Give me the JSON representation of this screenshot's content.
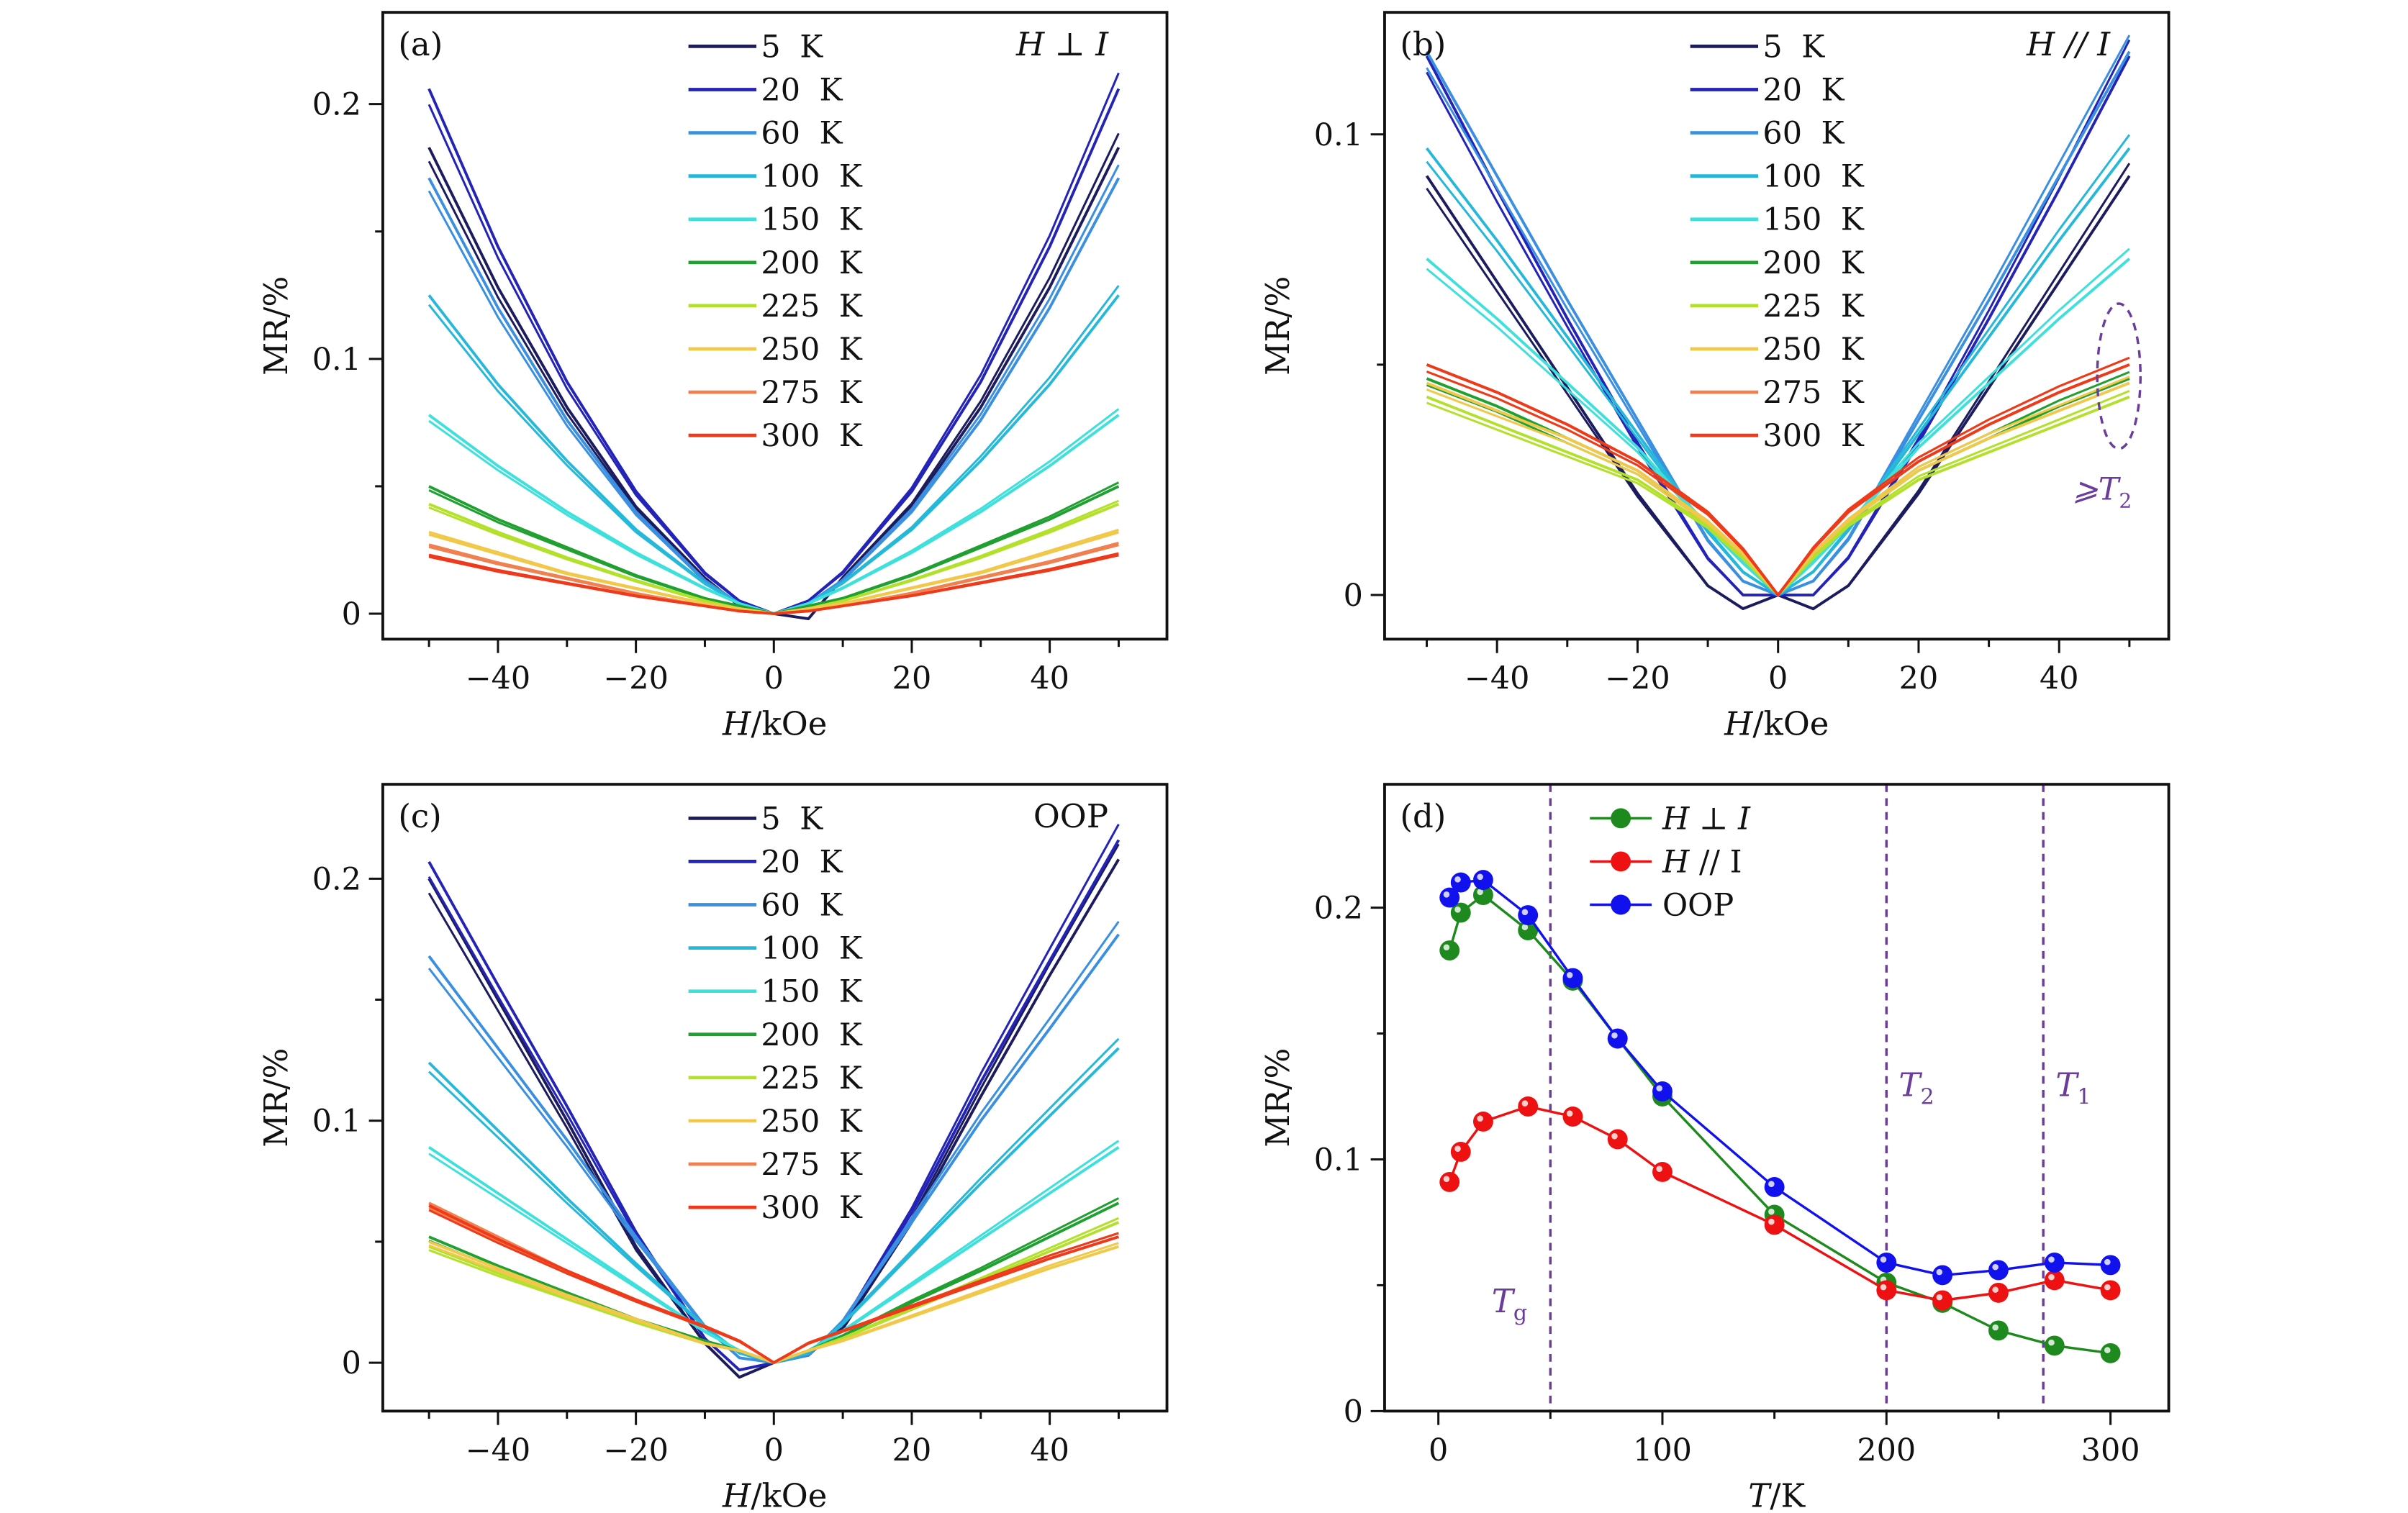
{
  "chart_data": [
    {
      "type": "line",
      "panel_label": "(a)",
      "condition": "H ⊥ I",
      "xlabel": {
        "var": "H",
        "unit": "/kOe"
      },
      "ylabel": "MR/%",
      "xlim": [
        -56.7,
        57
      ],
      "ylim": [
        -0.01,
        0.236
      ],
      "xticks": [
        -40,
        -20,
        0,
        20,
        40
      ],
      "xtick_labels": [
        "−40",
        "−20",
        "0",
        "20",
        "40"
      ],
      "yticks": [
        0,
        0.1,
        0.2
      ],
      "ytick_labels": [
        "0",
        "0.1",
        "0.2"
      ],
      "legend": "top-center",
      "x": [
        -50,
        -40,
        -30,
        -20,
        -10,
        -5,
        0,
        5,
        10,
        20,
        30,
        40,
        50
      ],
      "series": [
        {
          "name": "5 K",
          "color": "#1b1b5e",
          "y": [
            0.183,
            0.128,
            0.081,
            0.042,
            0.014,
            0.003,
            0,
            -0.002,
            0.014,
            0.042,
            0.081,
            0.128,
            0.183
          ]
        },
        {
          "name": "20 K",
          "color": "#2323b8",
          "y": [
            0.206,
            0.144,
            0.091,
            0.048,
            0.016,
            0.005,
            0,
            0.005,
            0.016,
            0.048,
            0.091,
            0.144,
            0.206
          ]
        },
        {
          "name": "60 K",
          "color": "#3a8fe0",
          "y": [
            0.171,
            0.12,
            0.076,
            0.04,
            0.013,
            0.004,
            0,
            0.004,
            0.013,
            0.04,
            0.076,
            0.12,
            0.171
          ]
        },
        {
          "name": "100 K",
          "color": "#25b8d8",
          "y": [
            0.125,
            0.09,
            0.06,
            0.033,
            0.012,
            0.004,
            0,
            0.004,
            0.012,
            0.033,
            0.06,
            0.09,
            0.125
          ]
        },
        {
          "name": "150 K",
          "color": "#3ee0dc",
          "y": [
            0.078,
            0.058,
            0.04,
            0.024,
            0.01,
            0.004,
            0,
            0.004,
            0.01,
            0.024,
            0.04,
            0.058,
            0.078
          ]
        },
        {
          "name": "200 K",
          "color": "#1fa030",
          "y": [
            0.05,
            0.037,
            0.026,
            0.015,
            0.006,
            0.003,
            0,
            0.003,
            0.006,
            0.015,
            0.026,
            0.037,
            0.05
          ]
        },
        {
          "name": "225 K",
          "color": "#b3e02a",
          "y": [
            0.043,
            0.032,
            0.022,
            0.013,
            0.005,
            0.002,
            0,
            0.002,
            0.005,
            0.013,
            0.022,
            0.032,
            0.043
          ]
        },
        {
          "name": "250 K",
          "color": "#f2c84a",
          "y": [
            0.032,
            0.024,
            0.016,
            0.01,
            0.004,
            0.002,
            0,
            0.002,
            0.004,
            0.01,
            0.016,
            0.024,
            0.032
          ]
        },
        {
          "name": "275 K",
          "color": "#f08050",
          "y": [
            0.027,
            0.02,
            0.014,
            0.008,
            0.003,
            0.001,
            0,
            0.001,
            0.003,
            0.008,
            0.014,
            0.02,
            0.027
          ]
        },
        {
          "name": "300 K",
          "color": "#ee3a1a",
          "y": [
            0.023,
            0.017,
            0.012,
            0.007,
            0.003,
            0.001,
            0,
            0.001,
            0.003,
            0.007,
            0.012,
            0.017,
            0.023
          ]
        }
      ]
    },
    {
      "type": "line",
      "panel_label": "(b)",
      "condition": "H // I",
      "xlabel": {
        "var": "H",
        "unit": "/kOe"
      },
      "ylabel": "MR/%",
      "xlim": [
        -56,
        55.6
      ],
      "ylim": [
        -0.0096,
        0.1265
      ],
      "xticks": [
        -40,
        -20,
        0,
        20,
        40
      ],
      "xtick_labels": [
        "−40",
        "−20",
        "0",
        "20",
        "40"
      ],
      "yticks": [
        0,
        0.1
      ],
      "ytick_labels": [
        "0",
        "0.1"
      ],
      "legend": "top-center",
      "annotation": {
        "text": "⩾T",
        "sub": "2",
        "color": "#6a3d9a"
      },
      "x": [
        -50,
        -40,
        -30,
        -20,
        -10,
        -5,
        0,
        5,
        10,
        20,
        30,
        40,
        50
      ],
      "series": [
        {
          "name": "5 K",
          "color": "#1b1b5e",
          "y": [
            0.091,
            0.068,
            0.045,
            0.022,
            0.002,
            -0.003,
            0,
            -0.003,
            0.002,
            0.022,
            0.045,
            0.068,
            0.091
          ]
        },
        {
          "name": "20 K",
          "color": "#2323b8",
          "y": [
            0.117,
            0.088,
            0.06,
            0.033,
            0.008,
            0.0,
            0,
            0.0,
            0.008,
            0.033,
            0.06,
            0.088,
            0.117
          ]
        },
        {
          "name": "60 K",
          "color": "#3a8fe0",
          "y": [
            0.118,
            0.091,
            0.064,
            0.038,
            0.012,
            0.003,
            0,
            0.003,
            0.012,
            0.038,
            0.064,
            0.091,
            0.118
          ]
        },
        {
          "name": "100 K",
          "color": "#25b8d8",
          "y": [
            0.097,
            0.077,
            0.056,
            0.035,
            0.014,
            0.005,
            0,
            0.005,
            0.014,
            0.035,
            0.056,
            0.077,
            0.097
          ]
        },
        {
          "name": "150 K",
          "color": "#3ee0dc",
          "y": [
            0.073,
            0.06,
            0.046,
            0.032,
            0.015,
            0.007,
            0,
            0.007,
            0.015,
            0.032,
            0.046,
            0.06,
            0.073
          ]
        },
        {
          "name": "200 K",
          "color": "#1fa030",
          "y": [
            0.047,
            0.041,
            0.034,
            0.027,
            0.016,
            0.008,
            0,
            0.008,
            0.016,
            0.027,
            0.034,
            0.041,
            0.047
          ]
        },
        {
          "name": "225 K",
          "color": "#b3e02a",
          "y": [
            0.043,
            0.037,
            0.031,
            0.025,
            0.015,
            0.008,
            0,
            0.008,
            0.015,
            0.025,
            0.031,
            0.037,
            0.043
          ]
        },
        {
          "name": "250 K",
          "color": "#f2c84a",
          "y": [
            0.046,
            0.04,
            0.034,
            0.027,
            0.016,
            0.009,
            0,
            0.009,
            0.016,
            0.027,
            0.034,
            0.04,
            0.046
          ]
        },
        {
          "name": "275 K",
          "color": "#f08050",
          "y": [
            0.05,
            0.044,
            0.037,
            0.029,
            0.018,
            0.01,
            0,
            0.01,
            0.018,
            0.029,
            0.037,
            0.044,
            0.05
          ]
        },
        {
          "name": "300 K",
          "color": "#ee3a1a",
          "y": [
            0.05,
            0.044,
            0.037,
            0.029,
            0.018,
            0.01,
            0,
            0.01,
            0.018,
            0.029,
            0.037,
            0.044,
            0.05
          ]
        }
      ]
    },
    {
      "type": "line",
      "panel_label": "(c)",
      "condition": "OOP",
      "xlabel": {
        "var": "H",
        "unit": "/kOe"
      },
      "ylabel": "MR/%",
      "xlim": [
        -56.7,
        57
      ],
      "ylim": [
        -0.02,
        0.239
      ],
      "xticks": [
        -40,
        -20,
        0,
        20,
        40
      ],
      "xtick_labels": [
        "−40",
        "−20",
        "0",
        "20",
        "40"
      ],
      "yticks": [
        0,
        0.1,
        0.2
      ],
      "ytick_labels": [
        "0",
        "0.1",
        "0.2"
      ],
      "legend": "top-center",
      "x": [
        -50,
        -40,
        -30,
        -20,
        -10,
        -5,
        0,
        5,
        10,
        20,
        30,
        40,
        50
      ],
      "series": [
        {
          "name": "5 K",
          "color": "#1b1b5e",
          "y": [
            0.2,
            0.15,
            0.1,
            0.048,
            0.008,
            -0.006,
            0,
            0.004,
            0.014,
            0.058,
            0.11,
            0.16,
            0.208
          ]
        },
        {
          "name": "20 K",
          "color": "#2323b8",
          "y": [
            0.207,
            0.156,
            0.106,
            0.054,
            0.01,
            -0.003,
            0,
            0.003,
            0.016,
            0.062,
            0.116,
            0.166,
            0.216
          ]
        },
        {
          "name": "60 K",
          "color": "#3a8fe0",
          "y": [
            0.168,
            0.13,
            0.092,
            0.052,
            0.015,
            0.002,
            0,
            0.003,
            0.017,
            0.058,
            0.1,
            0.138,
            0.177
          ]
        },
        {
          "name": "100 K",
          "color": "#25b8d8",
          "y": [
            0.124,
            0.096,
            0.068,
            0.041,
            0.015,
            0.004,
            0,
            0.004,
            0.016,
            0.045,
            0.074,
            0.102,
            0.13
          ]
        },
        {
          "name": "150 K",
          "color": "#3ee0dc",
          "y": [
            0.089,
            0.07,
            0.051,
            0.032,
            0.013,
            0.005,
            0,
            0.005,
            0.013,
            0.032,
            0.051,
            0.07,
            0.089
          ]
        },
        {
          "name": "200 K",
          "color": "#1fa030",
          "y": [
            0.052,
            0.04,
            0.029,
            0.018,
            0.009,
            0.005,
            0,
            0.005,
            0.011,
            0.025,
            0.038,
            0.052,
            0.066
          ]
        },
        {
          "name": "225 K",
          "color": "#b3e02a",
          "y": [
            0.048,
            0.037,
            0.027,
            0.017,
            0.008,
            0.005,
            0,
            0.005,
            0.01,
            0.022,
            0.034,
            0.046,
            0.058
          ]
        },
        {
          "name": "250 K",
          "color": "#f2c84a",
          "y": [
            0.05,
            0.039,
            0.028,
            0.018,
            0.008,
            0.005,
            0,
            0.005,
            0.009,
            0.019,
            0.029,
            0.039,
            0.048
          ]
        },
        {
          "name": "275 K",
          "color": "#f08050",
          "y": [
            0.066,
            0.052,
            0.038,
            0.026,
            0.015,
            0.009,
            0,
            0.008,
            0.013,
            0.023,
            0.033,
            0.043,
            0.052
          ]
        },
        {
          "name": "300 K",
          "color": "#ee3a1a",
          "y": [
            0.065,
            0.051,
            0.038,
            0.026,
            0.015,
            0.009,
            0,
            0.008,
            0.013,
            0.023,
            0.033,
            0.043,
            0.052
          ]
        }
      ]
    },
    {
      "type": "line",
      "panel_label": "(d)",
      "xlabel": {
        "var": "T",
        "unit": "/K"
      },
      "ylabel": "MR/%",
      "xlim": [
        -24,
        326
      ],
      "ylim": [
        0,
        0.249
      ],
      "xticks": [
        0,
        100,
        200,
        300
      ],
      "xtick_labels": [
        "0",
        "100",
        "200",
        "300"
      ],
      "yticks": [
        0,
        0.1,
        0.2
      ],
      "ytick_labels": [
        "0",
        "0.1",
        "0.2"
      ],
      "legend": "top-left",
      "markers": true,
      "vlines": [
        {
          "x": 50,
          "label": "T",
          "sub": "g",
          "color": "#6a3d9a"
        },
        {
          "x": 200,
          "label": "T",
          "sub": "2",
          "color": "#6a3d9a"
        },
        {
          "x": 270,
          "label": "T",
          "sub": "1",
          "color": "#6a3d9a"
        }
      ],
      "x": [
        5,
        10,
        20,
        40,
        60,
        80,
        100,
        150,
        200,
        225,
        250,
        275,
        300
      ],
      "series": [
        {
          "name": "H ⊥ I",
          "var": "H",
          "rest": " ⊥ ",
          "var2": "I",
          "color": "#1e8a1e",
          "y": [
            0.183,
            0.198,
            0.205,
            0.191,
            0.171,
            0.148,
            0.125,
            0.078,
            0.051,
            0.043,
            0.032,
            0.026,
            0.023
          ]
        },
        {
          "name": "H // I",
          "var": "H",
          "rest": " // I",
          "var2": "",
          "color": "#ee1111",
          "y": [
            0.091,
            0.103,
            0.115,
            0.121,
            0.117,
            0.108,
            0.095,
            0.074,
            0.048,
            0.044,
            0.047,
            0.052,
            0.048
          ]
        },
        {
          "name": "OOP",
          "var": "",
          "rest": "OOP",
          "var2": "",
          "color": "#1111ee",
          "y": [
            0.204,
            0.21,
            0.211,
            0.197,
            0.172,
            0.148,
            0.127,
            0.089,
            0.059,
            0.054,
            0.056,
            0.059,
            0.058
          ]
        }
      ]
    }
  ]
}
